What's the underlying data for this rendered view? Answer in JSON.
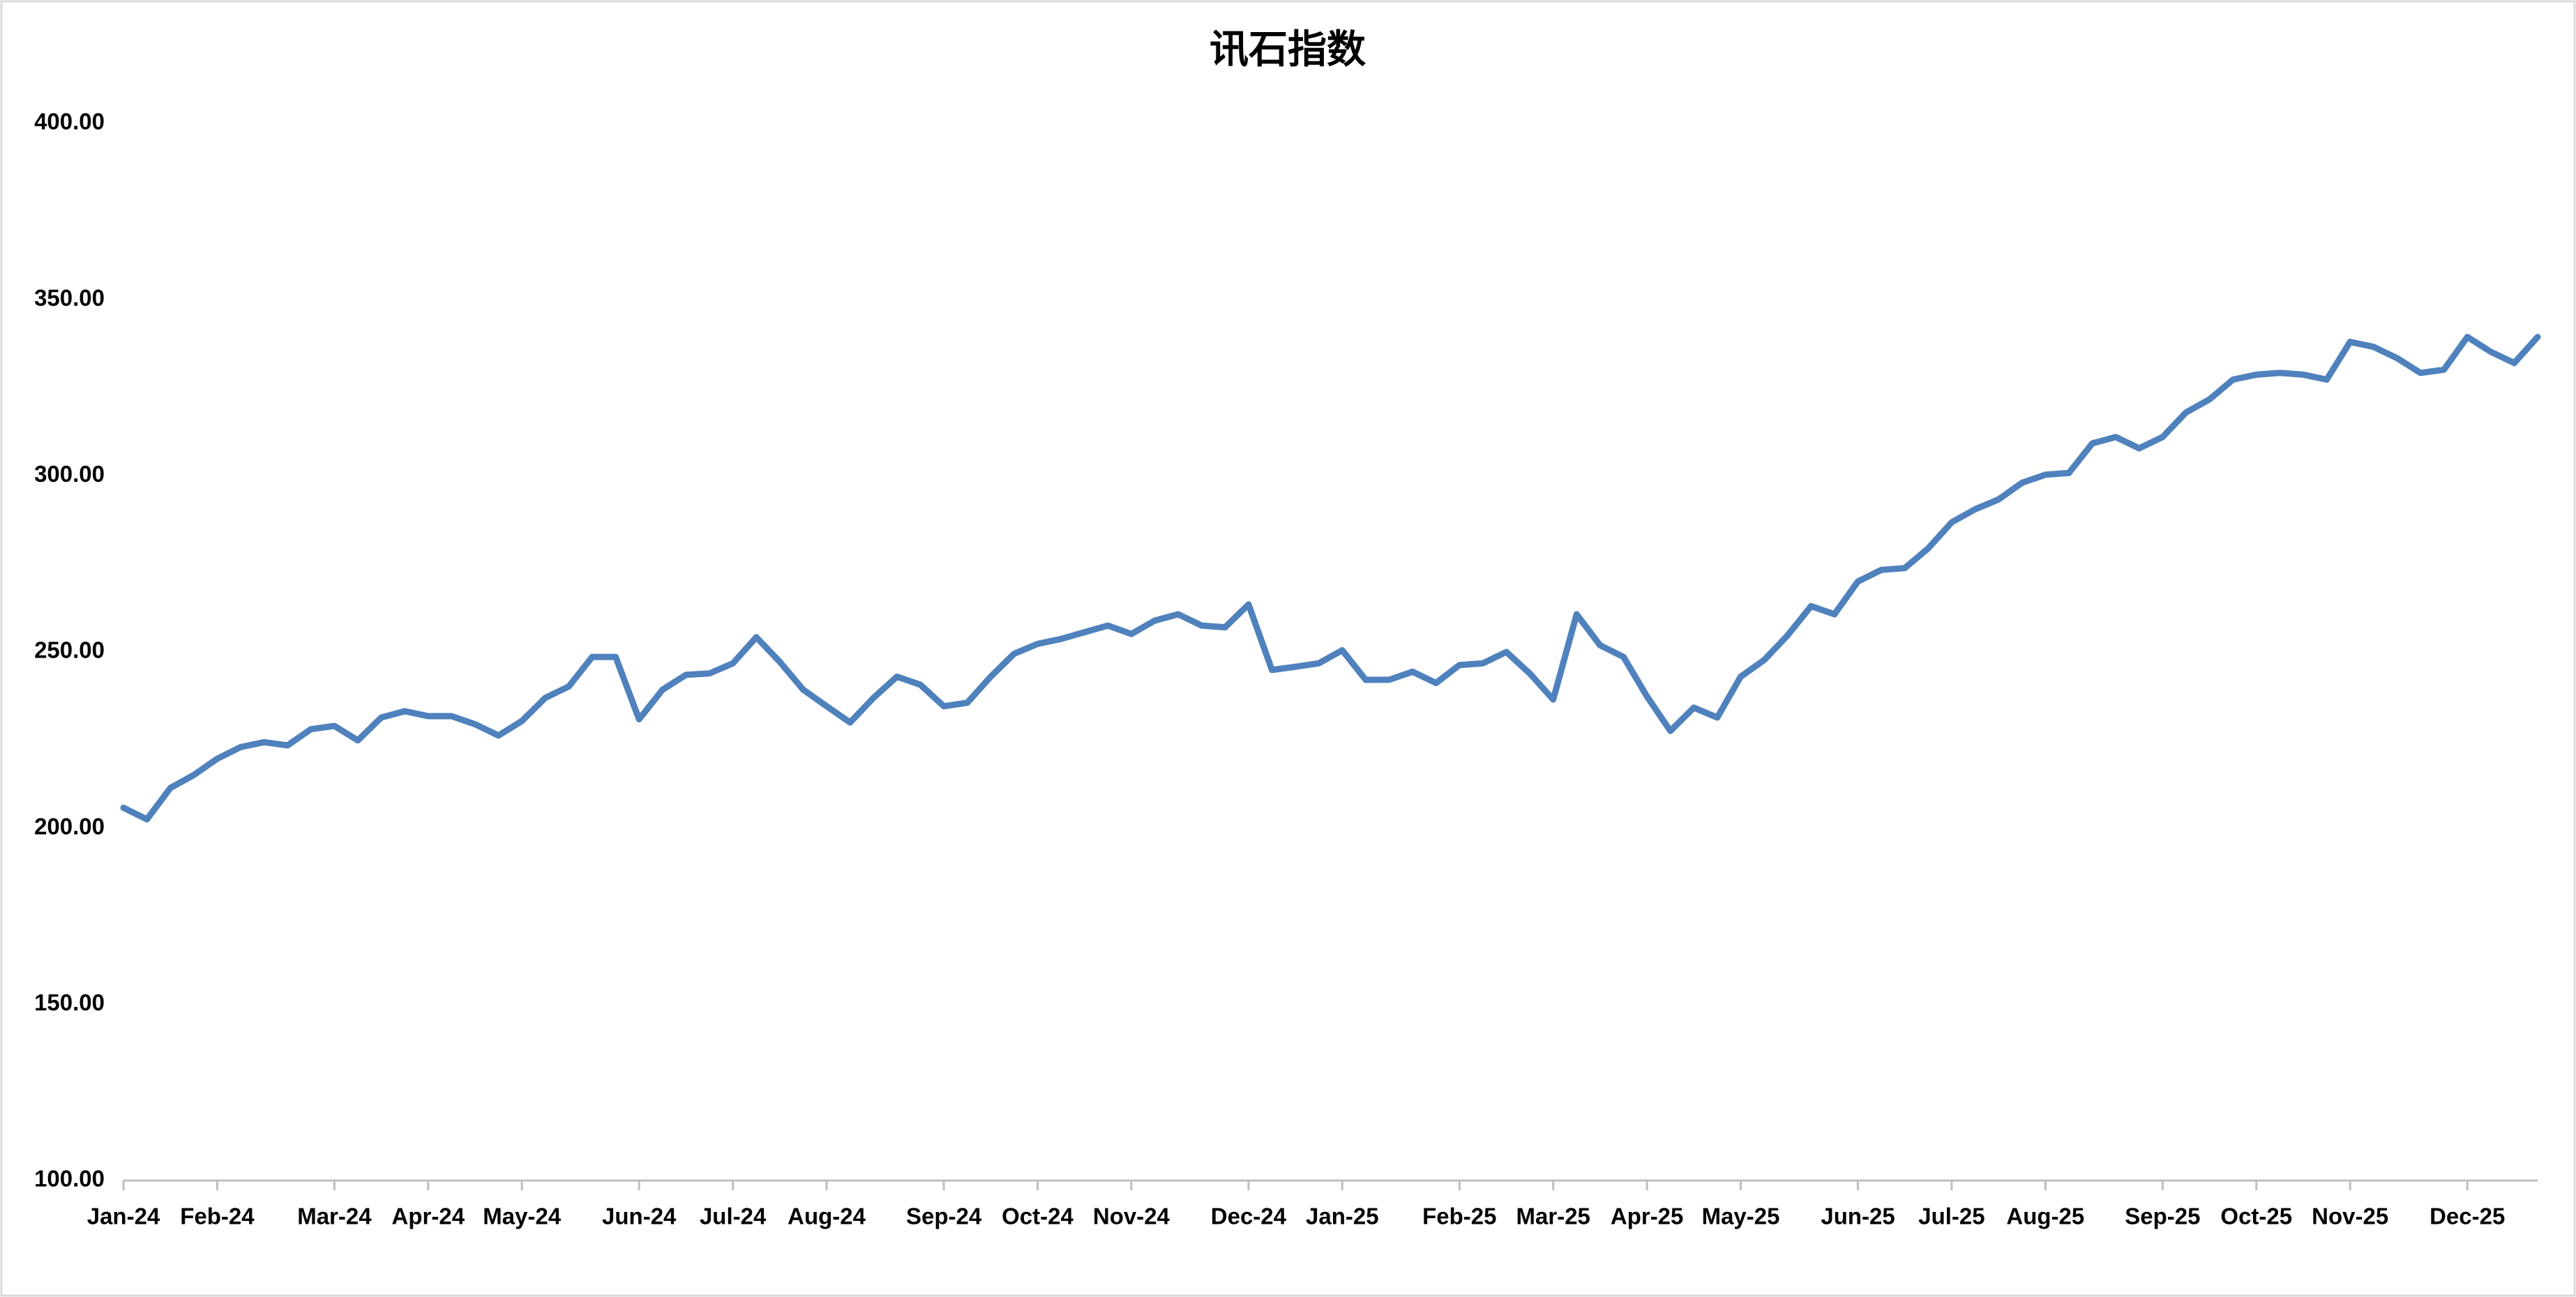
{
  "chart_data": {
    "type": "line",
    "title": "讯石指数",
    "categories": [
      "Jan-24",
      null,
      null,
      null,
      "Feb-24",
      null,
      null,
      null,
      null,
      "Mar-24",
      null,
      null,
      null,
      "Apr-24",
      null,
      null,
      null,
      "May-24",
      null,
      null,
      null,
      null,
      "Jun-24",
      null,
      null,
      null,
      "Jul-24",
      null,
      null,
      null,
      "Aug-24",
      null,
      null,
      null,
      null,
      "Sep-24",
      null,
      null,
      null,
      "Oct-24",
      null,
      null,
      null,
      "Nov-24",
      null,
      null,
      null,
      null,
      "Dec-24",
      null,
      null,
      null,
      "Jan-25",
      null,
      null,
      null,
      null,
      "Feb-25",
      null,
      null,
      null,
      "Mar-25",
      null,
      null,
      null,
      "Apr-25",
      null,
      null,
      null,
      "May-25",
      null,
      null,
      null,
      null,
      "Jun-25",
      null,
      null,
      null,
      "Jul-25",
      null,
      null,
      null,
      "Aug-25",
      null,
      null,
      null,
      null,
      "Sep-25",
      null,
      null,
      null,
      "Oct-25",
      null,
      null,
      null,
      "Nov-25",
      null,
      null,
      null,
      null,
      "Dec-25",
      null,
      null,
      null
    ],
    "values": [
      205.8,
      202.5,
      211.4,
      215.1,
      219.7,
      223.0,
      224.4,
      223.5,
      228.1,
      229.0,
      224.9,
      231.4,
      233.2,
      231.8,
      231.8,
      229.5,
      226.3,
      230.4,
      237.0,
      240.2,
      248.6,
      248.6,
      230.9,
      239.3,
      243.5,
      243.9,
      246.8,
      254.2,
      247.2,
      239.3,
      234.6,
      230.0,
      237.0,
      243.0,
      240.7,
      234.6,
      235.6,
      243.0,
      249.5,
      252.3,
      253.7,
      255.6,
      257.5,
      255.1,
      258.9,
      260.7,
      257.5,
      257.0,
      263.5,
      244.9,
      245.8,
      246.8,
      250.5,
      242.1,
      242.1,
      244.4,
      241.2,
      246.3,
      246.8,
      250.0,
      243.9,
      236.5,
      260.7,
      251.9,
      248.6,
      237.4,
      227.6,
      234.2,
      231.4,
      243.0,
      247.7,
      254.7,
      263.0,
      260.7,
      270.0,
      273.3,
      273.8,
      279.4,
      286.8,
      290.5,
      293.3,
      298.0,
      300.3,
      300.8,
      309.2,
      311.0,
      307.8,
      311.0,
      318.0,
      321.7,
      327.3,
      328.7,
      329.2,
      328.7,
      327.3,
      338.0,
      336.6,
      333.4,
      329.2,
      330.1,
      339.4,
      335.2,
      332.0,
      339.4
    ],
    "color": "#4f81bd",
    "ylim": [
      100,
      400
    ],
    "yticks": [
      {
        "value": 100,
        "label": "100.00"
      },
      {
        "value": 150,
        "label": "150.00"
      },
      {
        "value": 200,
        "label": "200.00"
      },
      {
        "value": 250,
        "label": "250.00"
      },
      {
        "value": 300,
        "label": "300.00"
      },
      {
        "value": 350,
        "label": "350.00"
      },
      {
        "value": 400,
        "label": "400.00"
      }
    ],
    "grid": false
  }
}
